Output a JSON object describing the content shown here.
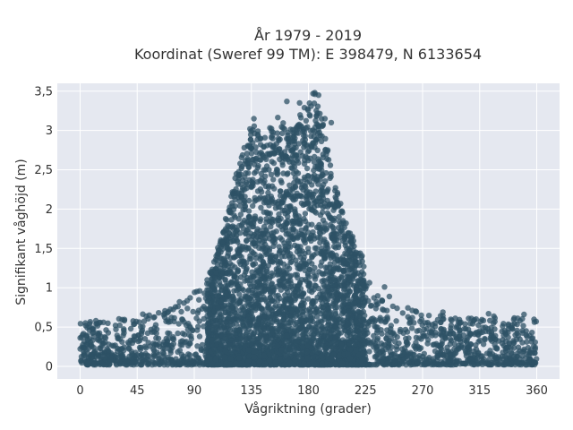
{
  "chart_data": {
    "type": "scatter",
    "title_line1": "År 1979 - 2019",
    "title_line2": "Koordinat (Sweref 99 TM): E 398479, N 6133654",
    "xlabel": "Vågriktning (grader)",
    "ylabel": "Signifikant våghöjd (m)",
    "xlim": [
      -18,
      378
    ],
    "ylim": [
      -0.16,
      3.6
    ],
    "x_ticks": [
      0,
      45,
      90,
      135,
      180,
      225,
      270,
      315,
      360
    ],
    "x_tick_labels": [
      "0",
      "45",
      "90",
      "135",
      "180",
      "225",
      "270",
      "315",
      "360"
    ],
    "y_ticks": [
      0,
      0.5,
      1,
      1.5,
      2,
      2.5,
      3,
      3.5
    ],
    "y_tick_labels": [
      "0",
      "0,5",
      "1",
      "1,5",
      "2",
      "2,5",
      "3",
      "3,5"
    ],
    "grid": true,
    "marker_color": "#2e5266",
    "plot_bg": "#e5e8f0",
    "envelope": {
      "x": [
        0,
        20,
        45,
        70,
        85,
        95,
        105,
        115,
        125,
        135,
        145,
        155,
        165,
        175,
        180,
        185,
        190,
        200,
        210,
        220,
        230,
        240,
        255,
        270,
        300,
        330,
        360
      ],
      "y_max_approx": [
        0.55,
        0.6,
        0.65,
        0.75,
        0.9,
        1.0,
        1.3,
        1.9,
        2.6,
        3.1,
        2.9,
        3.2,
        3.0,
        3.3,
        3.4,
        3.5,
        3.2,
        2.4,
        1.8,
        1.5,
        1.1,
        0.95,
        0.8,
        0.7,
        0.6,
        0.65,
        0.6
      ]
    },
    "notable_points": [
      {
        "x": 137,
        "y": 3.15
      },
      {
        "x": 163,
        "y": 3.37
      },
      {
        "x": 173,
        "y": 3.35
      },
      {
        "x": 185,
        "y": 3.48
      },
      {
        "x": 188,
        "y": 3.45
      },
      {
        "x": 193,
        "y": 3.15
      },
      {
        "x": 198,
        "y": 3.1
      },
      {
        "x": 58,
        "y": 0.62
      },
      {
        "x": 269,
        "y": 0.65
      },
      {
        "x": 286,
        "y": 0.69
      },
      {
        "x": 322,
        "y": 0.67
      },
      {
        "x": 350,
        "y": 0.66
      },
      {
        "x": 100,
        "y": 1.05
      },
      {
        "x": 240,
        "y": 1.01
      }
    ]
  }
}
